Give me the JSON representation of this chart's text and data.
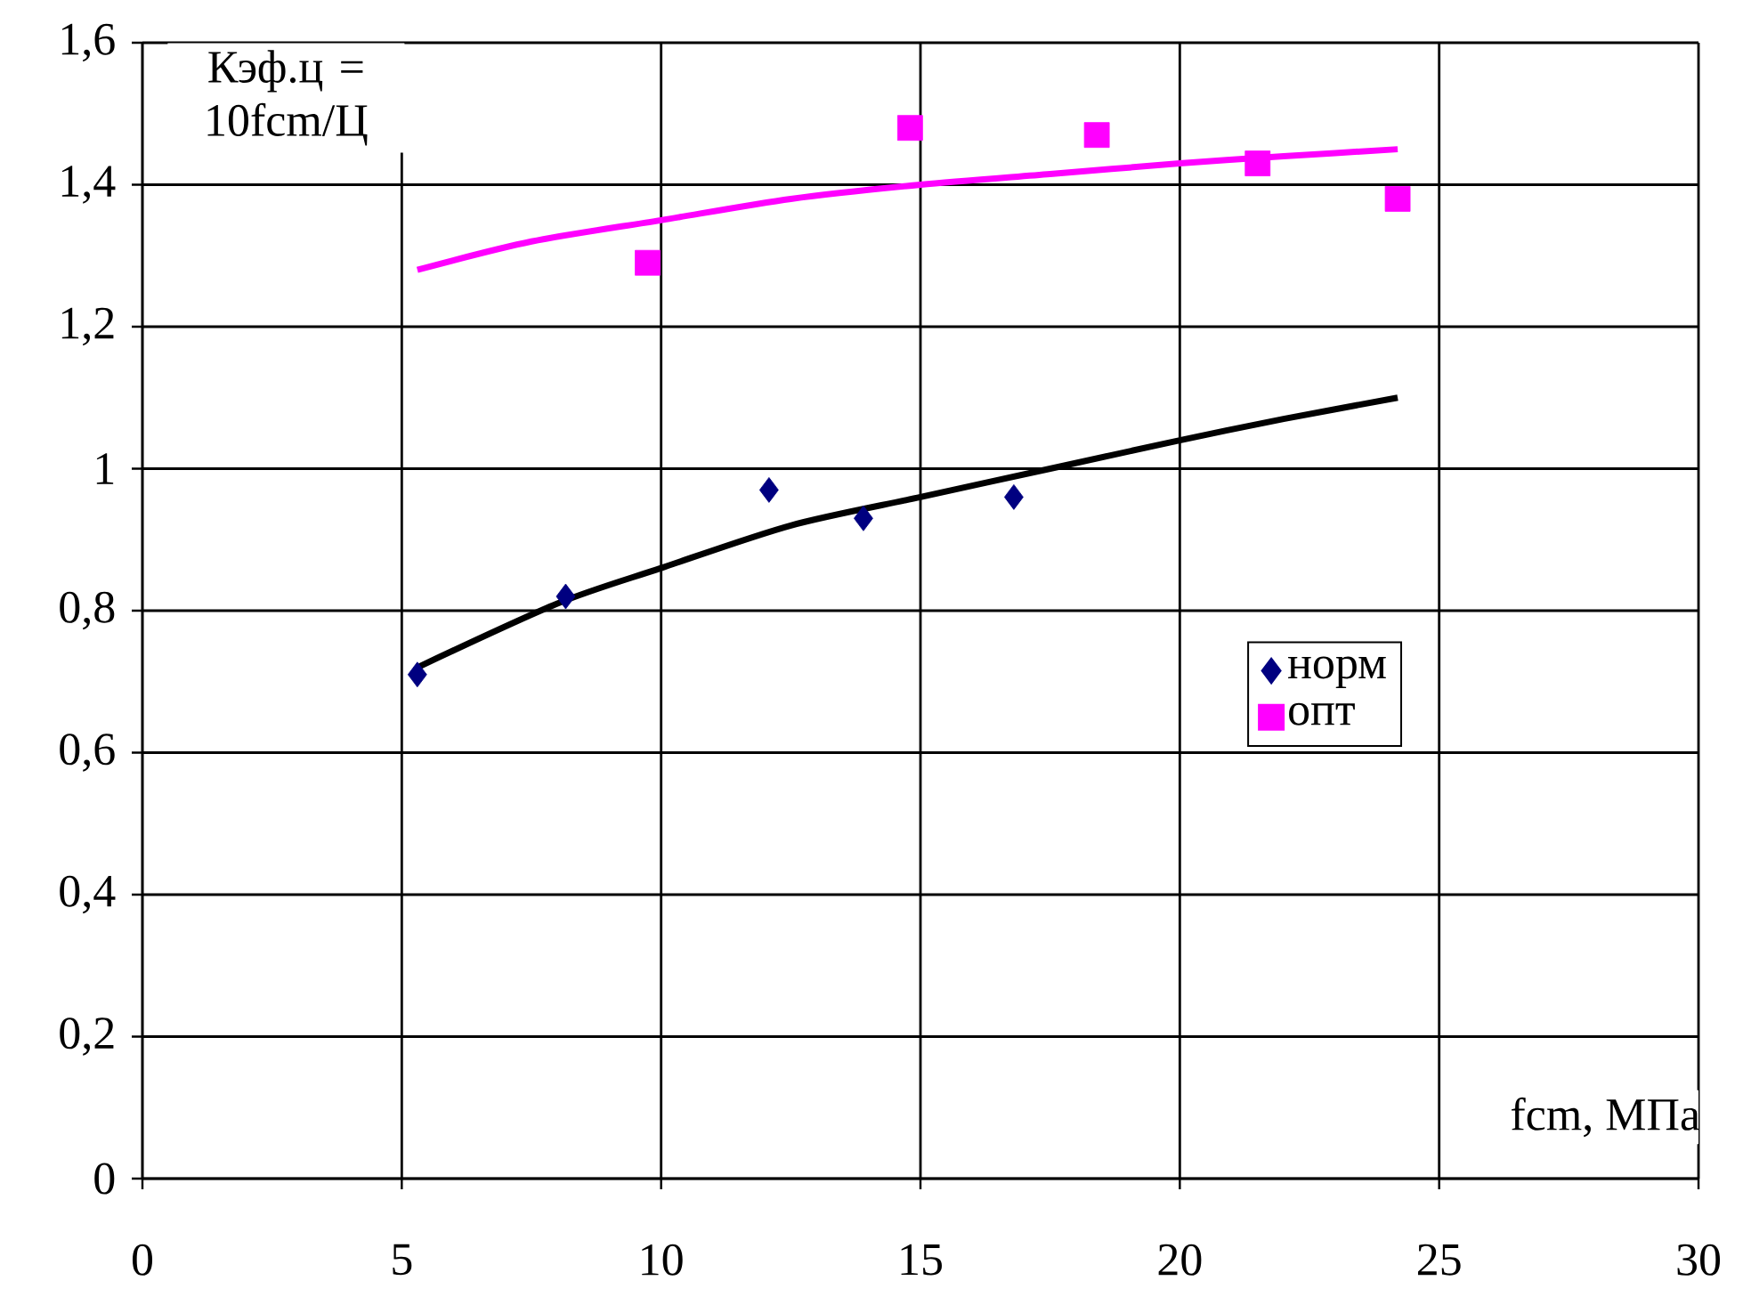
{
  "chart_data": {
    "type": "scatter",
    "ylabel": "Кэф.ц = 10fcm/Ц",
    "xlabel": "fcm, МПа",
    "xlim": [
      0,
      30
    ],
    "xticks": [
      0,
      5,
      10,
      15,
      20,
      25,
      30
    ],
    "ylim": [
      0,
      1.6
    ],
    "yticks": [
      0,
      {
        "value": 0.2,
        "label": "0,2"
      },
      {
        "value": 0.4,
        "label": "0,4"
      },
      {
        "value": 0.6,
        "label": "0,6"
      },
      {
        "value": 0.8,
        "label": "0,8"
      },
      1,
      {
        "value": 1.2,
        "label": "1,2"
      },
      {
        "value": 1.4,
        "label": "1,4"
      },
      {
        "value": 1.6,
        "label": "1,6"
      }
    ],
    "grid": true,
    "legend": "right",
    "series": [
      {
        "name": "норм",
        "marker": "diamond",
        "color": "#000080",
        "x": [
          5.3,
          8.16,
          12.08,
          13.9,
          16.8
        ],
        "values": [
          0.71,
          0.82,
          0.97,
          0.93,
          0.96
        ]
      },
      {
        "name": "опт",
        "marker": "square",
        "color": "#ff00ff",
        "x": [
          9.74,
          14.8,
          18.4,
          21.5,
          24.2
        ],
        "values": [
          1.29,
          1.48,
          1.47,
          1.43,
          1.38
        ]
      },
      {
        "type": "line",
        "color": "#000000",
        "x": [
          5.3,
          8,
          10,
          12.5,
          15,
          17.5,
          20,
          22,
          24.2
        ],
        "values": [
          0.72,
          0.81,
          0.86,
          0.92,
          0.96,
          1.0,
          1.04,
          1.07,
          1.1
        ]
      },
      {
        "type": "line",
        "color": "#ff00ff",
        "x": [
          5.3,
          7.5,
          10,
          12.5,
          15,
          17.5,
          20,
          22,
          24.2
        ],
        "values": [
          1.28,
          1.32,
          1.35,
          1.38,
          1.4,
          1.415,
          1.43,
          1.44,
          1.45
        ]
      }
    ]
  }
}
